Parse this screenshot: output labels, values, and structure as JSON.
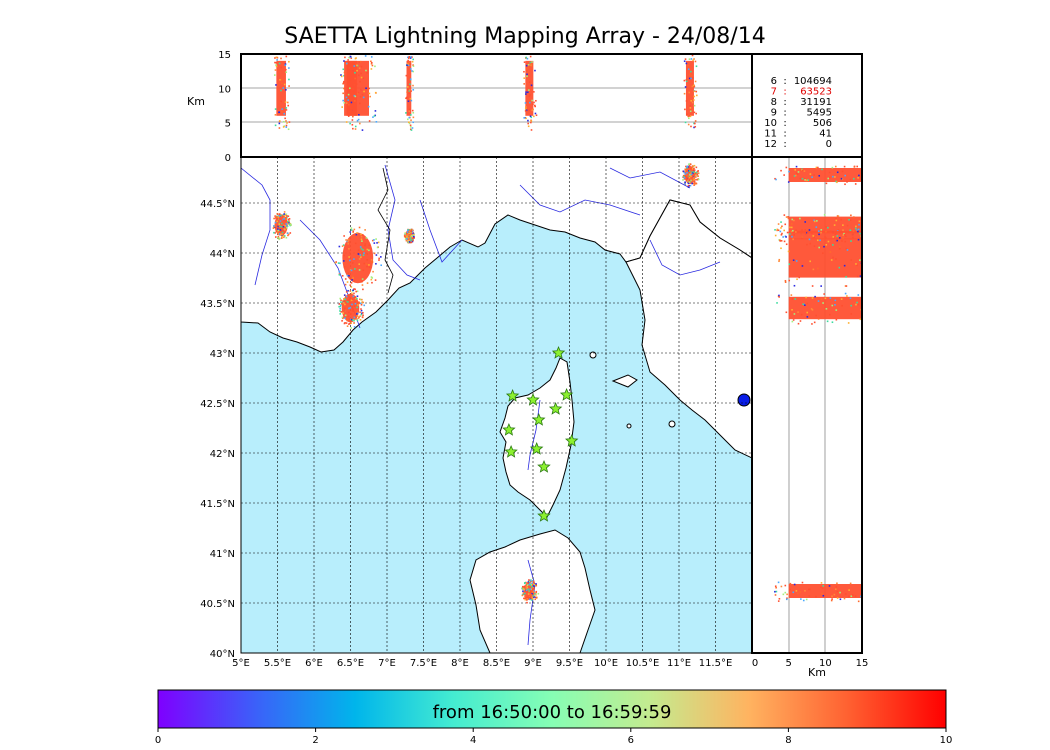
{
  "title": "SAETTA Lightning Mapping Array - 24/08/14",
  "chart_data": [
    {
      "type": "map",
      "panel": "plan-view",
      "lon_range": [
        5,
        12
      ],
      "lat_range": [
        40,
        44.95
      ],
      "x_ticks": [
        "5°E",
        "5.5°E",
        "6°E",
        "6.5°E",
        "7°E",
        "7.5°E",
        "8°E",
        "8.5°E",
        "9°E",
        "9.5°E",
        "10°E",
        "10.5°E",
        "11°E",
        "11.5°E"
      ],
      "y_ticks": [
        "40°N",
        "40.5°N",
        "41°N",
        "41.5°N",
        "42°N",
        "42.5°N",
        "43°N",
        "43.5°N",
        "44°N",
        "44.5°N"
      ],
      "grid": true,
      "sea_color": "#b8eefc",
      "stations": [
        {
          "lon": 9.35,
          "lat": 43.0
        },
        {
          "lon": 8.72,
          "lat": 42.57
        },
        {
          "lon": 9.0,
          "lat": 42.53
        },
        {
          "lon": 9.46,
          "lat": 42.58
        },
        {
          "lon": 9.31,
          "lat": 42.44
        },
        {
          "lon": 9.08,
          "lat": 42.33
        },
        {
          "lon": 8.67,
          "lat": 42.23
        },
        {
          "lon": 9.53,
          "lat": 42.12
        },
        {
          "lon": 9.05,
          "lat": 42.04
        },
        {
          "lon": 8.7,
          "lat": 42.01
        },
        {
          "lon": 9.15,
          "lat": 41.86
        },
        {
          "lon": 9.15,
          "lat": 41.37
        }
      ],
      "lightning_clusters": [
        {
          "lon": 5.55,
          "lat": 44.28,
          "size": 0.12
        },
        {
          "lon": 6.6,
          "lat": 43.95,
          "size": 0.28
        },
        {
          "lon": 6.5,
          "lat": 43.45,
          "size": 0.16
        },
        {
          "lon": 7.3,
          "lat": 44.18,
          "size": 0.06
        },
        {
          "lon": 11.15,
          "lat": 44.78,
          "size": 0.1
        },
        {
          "lon": 8.95,
          "lat": 40.62,
          "size": 0.1
        }
      ]
    },
    {
      "type": "scatter",
      "panel": "lon-altitude",
      "ylabel": "Km",
      "y_ticks": [
        "0",
        "5",
        "10",
        "15"
      ],
      "ylim": [
        0,
        15
      ]
    },
    {
      "type": "scatter",
      "panel": "altitude-lat",
      "xlabel": "Km",
      "x_ticks": [
        "0",
        "5",
        "10",
        "15"
      ],
      "xlim": [
        0,
        15
      ]
    },
    {
      "type": "table",
      "panel": "station-counts",
      "rows": [
        {
          "stations": "6",
          "sep": ":",
          "count": "104694",
          "color": "#000000"
        },
        {
          "stations": "7",
          "sep": ":",
          "count": "63523",
          "color": "#e00000"
        },
        {
          "stations": "8",
          "sep": ":",
          "count": "31191",
          "color": "#000000"
        },
        {
          "stations": "9",
          "sep": ":",
          "count": "5495",
          "color": "#000000"
        },
        {
          "stations": "10",
          "sep": ":",
          "count": "506",
          "color": "#000000"
        },
        {
          "stations": "11",
          "sep": ":",
          "count": "41",
          "color": "#000000"
        },
        {
          "stations": "12",
          "sep": ":",
          "count": "0",
          "color": "#000000"
        }
      ]
    },
    {
      "type": "colorbar",
      "label": "from 16:50:00 to 16:59:59",
      "ticks": [
        "0",
        "2",
        "4",
        "6",
        "8",
        "10"
      ],
      "range": [
        0,
        10
      ],
      "colormap": [
        "#7f00ff",
        "#3b61f9",
        "#00b5eb",
        "#44ecd1",
        "#86feb4",
        "#c4eb8f",
        "#ffb360",
        "#ff6131",
        "#ff0000"
      ]
    }
  ]
}
